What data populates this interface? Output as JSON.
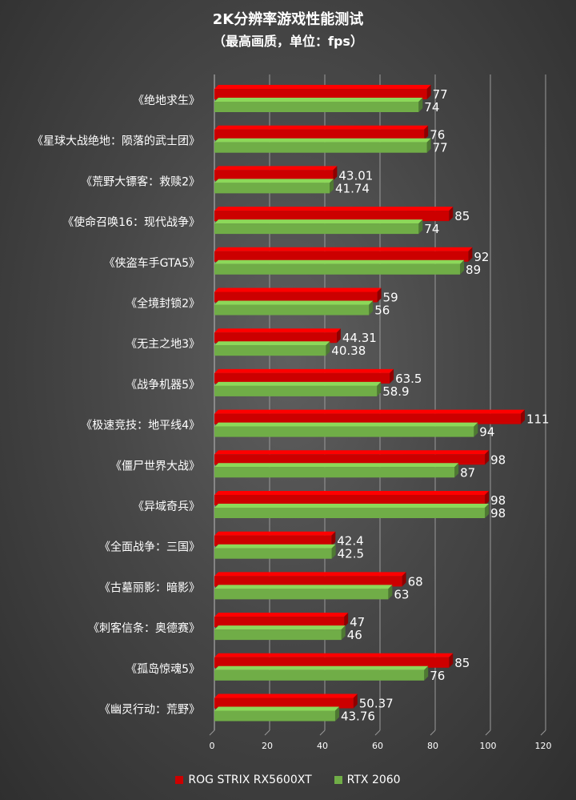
{
  "chart_data": {
    "type": "bar",
    "orientation": "horizontal",
    "title": "2K分辨率游戏性能测试",
    "subtitle": "（最高画质，单位：fps）",
    "categories": [
      "《绝地求生》",
      "《星球大战绝地：陨落的武士团》",
      "《荒野大镖客：救赎2》",
      "《使命召唤16：现代战争》",
      "《侠盗车手GTA5》",
      "《全境封锁2》",
      "《无主之地3》",
      "《战争机器5》",
      "《极速竞技：地平线4》",
      "《僵尸世界大战》",
      "《异域奇兵》",
      "《全面战争：三国》",
      "《古墓丽影：暗影》",
      "《刺客信条：奥德赛》",
      "《孤岛惊魂5》",
      "《幽灵行动：荒野》"
    ],
    "series": [
      {
        "name": "ROG STRIX RX5600XT",
        "color": "#cc0000",
        "values": [
          77,
          76,
          43.01,
          85,
          92,
          59,
          44.31,
          63.5,
          111,
          98,
          98,
          42.4,
          68,
          47,
          85,
          50.37
        ],
        "labels": [
          "77",
          "76",
          "43.01",
          "85",
          "92",
          "59",
          "44.31",
          "63.5",
          "111",
          "98",
          "98",
          "42.4",
          "68",
          "47",
          "85",
          "50.37"
        ]
      },
      {
        "name": "RTX 2060",
        "color": "#70ad47",
        "values": [
          74,
          77,
          41.74,
          74,
          89,
          56,
          40.38,
          58.9,
          94,
          87,
          98,
          42.5,
          63,
          46,
          76,
          43.76
        ],
        "labels": [
          "74",
          "77",
          "41.74",
          "74",
          "89",
          "56",
          "40.38",
          "58.9",
          "94",
          "87",
          "98",
          "42.5",
          "63",
          "46",
          "76",
          "43.76"
        ]
      }
    ],
    "xlim": [
      0,
      120
    ],
    "xticks": [
      "0",
      "20",
      "40",
      "60",
      "80",
      "100",
      "120"
    ],
    "grid": true,
    "legend_position": "bottom"
  }
}
